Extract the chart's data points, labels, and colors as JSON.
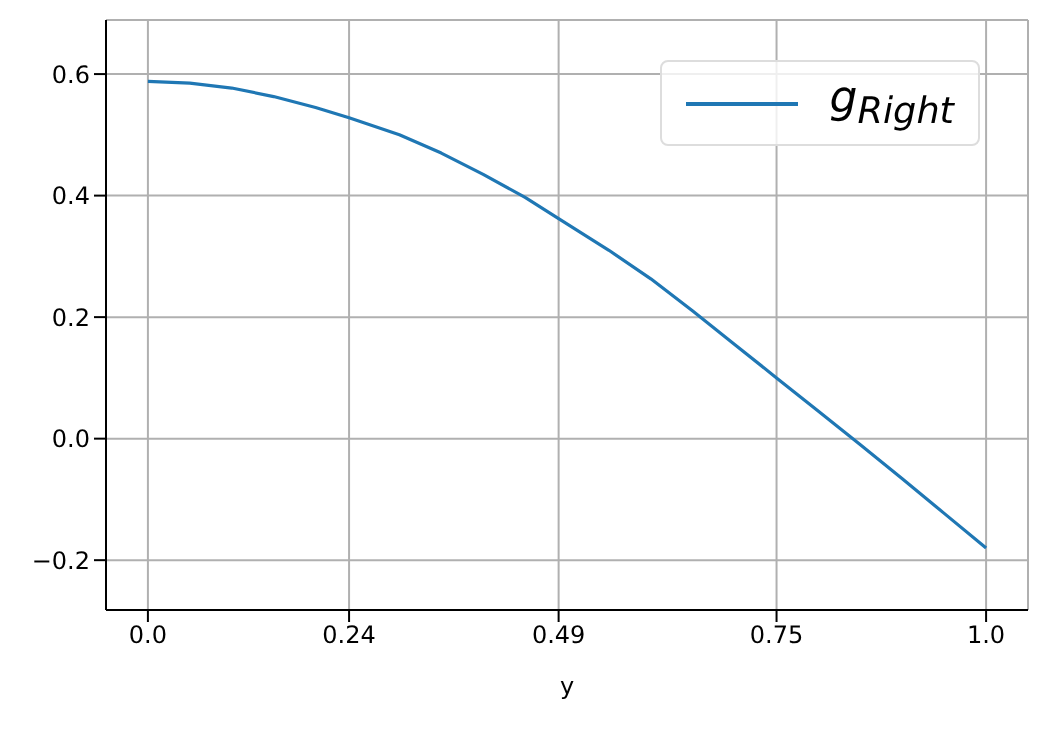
{
  "chart_data": {
    "type": "line",
    "xlabel": "y",
    "x": [
      0,
      0.05,
      0.1,
      0.15,
      0.2,
      0.24,
      0.3,
      0.35,
      0.4,
      0.45,
      0.49,
      0.55,
      0.6,
      0.65,
      0.7,
      0.75,
      0.8,
      0.85,
      0.9,
      0.95,
      1.0
    ],
    "series": [
      {
        "name": "g$_{Right}$",
        "color": "#1f77b4",
        "values": [
          0.588,
          0.585,
          0.577,
          0.563,
          0.545,
          0.528,
          0.5,
          0.47,
          0.435,
          0.397,
          0.362,
          0.31,
          0.263,
          0.21,
          0.155,
          0.1,
          0.045,
          -0.01,
          -0.066,
          -0.123,
          -0.18
        ]
      }
    ],
    "xlim": [
      -0.05,
      1.05
    ],
    "xticks": [
      {
        "value": 0,
        "label": "0.0"
      },
      0.24,
      0.49,
      0.75,
      {
        "value": 1,
        "label": "1.0"
      }
    ],
    "ylim": [
      -0.282,
      0.689
    ],
    "yticks": [
      {
        "value": -0.2,
        "label": "−0.2"
      },
      {
        "value": 0,
        "label": "0.0"
      },
      0.2,
      0.4,
      0.6
    ],
    "grid": true,
    "legend": "top right",
    "marker": "none",
    "line_style": "solid"
  }
}
